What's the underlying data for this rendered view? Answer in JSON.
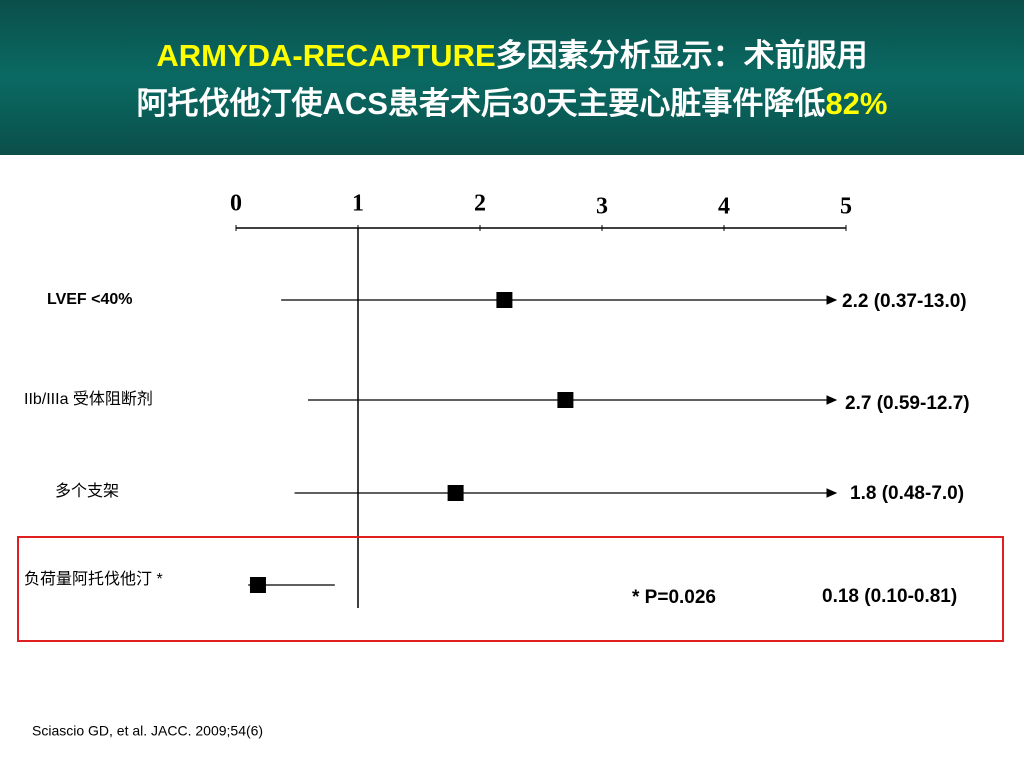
{
  "chart_data": {
    "type": "forest",
    "title": [
      [
        {
          "text": "ARMYDA-RECAPTURE",
          "color": "#ffff00"
        },
        {
          "text": "多因素分析显示：术前服用",
          "color": "#ffffff"
        }
      ],
      [
        {
          "text": "阿托伐他汀使ACS患者术后30天主要心脏事件降低",
          "color": "#ffffff"
        },
        {
          "text": "82%",
          "color": "#ffff00"
        }
      ]
    ],
    "xlim": [
      0,
      5
    ],
    "xticks": [
      0,
      1,
      2,
      3,
      4,
      5
    ],
    "reference": 1,
    "categories": [
      "LVEF <40%",
      "IIb/IIIa 受体阻断剂",
      "多个支架",
      "负荷量阿托伐他汀 *"
    ],
    "values": [
      2.2,
      2.7,
      1.8,
      0.18
    ],
    "lower": [
      0.37,
      0.59,
      0.48,
      0.1
    ],
    "upper": [
      13.0,
      12.7,
      7.0,
      0.81
    ],
    "value_labels": [
      "2.2 (0.37-13.0)",
      "2.7 (0.59-12.7)",
      "1.8 (0.48-7.0)",
      "0.18 (0.10-0.81)"
    ],
    "highlight": 3,
    "highlight_color": "#e02020",
    "annotation": "* P=0.026",
    "footnote": "Sciascio GD, et al. JACC. 2009;54(6)"
  }
}
